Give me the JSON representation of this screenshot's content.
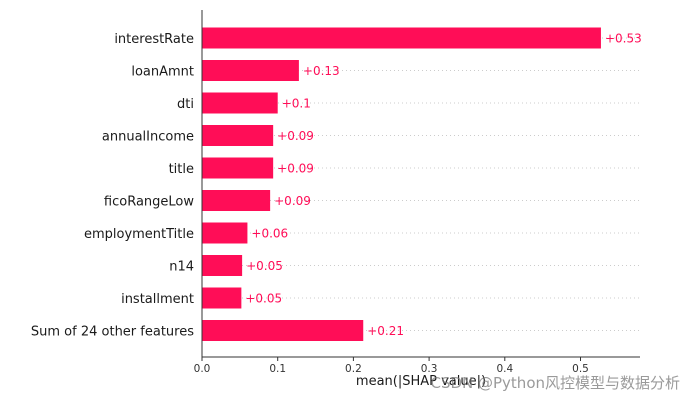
{
  "chart_data": {
    "type": "bar",
    "orientation": "horizontal",
    "categories": [
      "interestRate",
      "loanAmnt",
      "dti",
      "annualIncome",
      "title",
      "ficoRangeLow",
      "employmentTitle",
      "n14",
      "installment",
      "Sum of 24 other features"
    ],
    "values": [
      0.527,
      0.128,
      0.1,
      0.094,
      0.094,
      0.09,
      0.06,
      0.053,
      0.052,
      0.213
    ],
    "value_labels": [
      "+0.53",
      "+0.13",
      "+0.1",
      "+0.09",
      "+0.09",
      "+0.09",
      "+0.06",
      "+0.05",
      "+0.05",
      "+0.21"
    ],
    "xticks": [
      "0.0",
      "0.1",
      "0.2",
      "0.3",
      "0.4",
      "0.5"
    ],
    "xlim": [
      0,
      0.58
    ],
    "xlabel": "mean(|SHAP value|)",
    "bar_color": "#ff0d57",
    "grid": "horizontal dotted lines"
  },
  "watermark": "CSDN @Python风控模型与数据分析"
}
